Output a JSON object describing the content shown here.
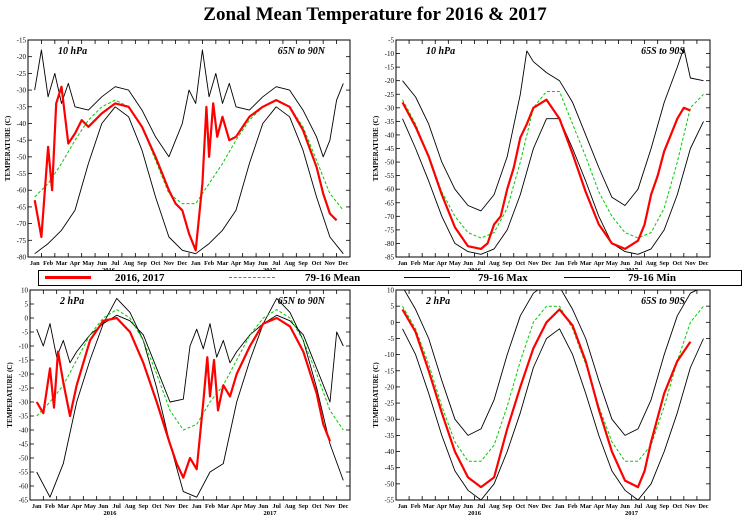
{
  "title": "Zonal Mean Temperature for 2016 & 2017",
  "legend": {
    "items": [
      {
        "label": "2016, 2017",
        "color": "#ff0000",
        "style": "solid-thick"
      },
      {
        "label": "79-16 Mean",
        "color": "#00cc00",
        "style": "dashed"
      },
      {
        "label": "79-16 Max",
        "color": "#000000",
        "style": "solid"
      },
      {
        "label": "79-16 Min",
        "color": "#000000",
        "style": "solid"
      }
    ]
  },
  "chart_data": [
    {
      "type": "line",
      "level": "10 hPa",
      "region": "65N to 90N",
      "ylabel": "TEMPERATURE (C)",
      "ylim": [
        -80,
        -15
      ],
      "yticks": [
        -80,
        -75,
        -70,
        -65,
        -60,
        -55,
        -50,
        -45,
        -40,
        -35,
        -30,
        -25,
        -20,
        -15
      ],
      "xticks": [
        "Jan",
        "Feb",
        "Mar",
        "Apr",
        "May",
        "Jun",
        "Jul",
        "Aug",
        "Sep",
        "Oct",
        "Nov",
        "Dec",
        "Jan",
        "Feb",
        "Mar",
        "Apr",
        "May",
        "Jun",
        "Jul",
        "Aug",
        "Sep",
        "Oct",
        "Nov",
        "Dec"
      ],
      "year_labels": [
        "2016",
        "2017"
      ],
      "series": [
        {
          "name": "2016, 2017",
          "x": [
            0,
            0.5,
            1,
            1.3,
            1.6,
            2,
            2.5,
            3,
            3.5,
            4,
            5,
            6,
            7,
            8,
            9,
            10,
            10.5,
            11,
            11.5,
            12,
            12.5,
            12.8,
            13,
            13.3,
            13.6,
            14,
            14.5,
            15,
            16,
            17,
            18,
            19,
            20,
            21,
            21.5,
            22,
            22.5
          ],
          "y": [
            -63,
            -74,
            -47,
            -60,
            -34,
            -29,
            -46,
            -43,
            -39,
            -41,
            -37,
            -34,
            -35,
            -41,
            -50,
            -60,
            -64,
            -66,
            -73,
            -78,
            -58,
            -35,
            -50,
            -34,
            -44,
            -38,
            -45,
            -44,
            -38,
            -35,
            -33,
            -35,
            -42,
            -53,
            -61,
            -67,
            -69
          ]
        },
        {
          "name": "79-16 Mean",
          "x": [
            0,
            1,
            2,
            3,
            4,
            5,
            6,
            7,
            8,
            9,
            10,
            11,
            12,
            13,
            14,
            15,
            16,
            17,
            18,
            19,
            20,
            21,
            22,
            23
          ],
          "y": [
            -62,
            -58,
            -52,
            -45,
            -39,
            -35,
            -33,
            -35,
            -41,
            -51,
            -61,
            -64,
            -64,
            -58,
            -52,
            -45,
            -39,
            -35,
            -33,
            -35,
            -41,
            -51,
            -61,
            -66
          ]
        },
        {
          "name": "79-16 Max",
          "x": [
            0,
            0.5,
            1,
            1.5,
            2,
            2.5,
            3,
            4,
            5,
            6,
            7,
            8,
            9,
            10,
            10.5,
            11,
            11.5,
            12,
            12.5,
            13,
            13.5,
            14,
            14.5,
            15,
            16,
            17,
            18,
            19,
            20,
            21,
            21.5,
            22,
            22.5,
            23
          ],
          "y": [
            -30,
            -18,
            -32,
            -25,
            -34,
            -28,
            -35,
            -36,
            -32,
            -29,
            -30,
            -36,
            -44,
            -50,
            -45,
            -40,
            -30,
            -34,
            -18,
            -32,
            -25,
            -34,
            -28,
            -35,
            -36,
            -32,
            -29,
            -30,
            -36,
            -44,
            -50,
            -45,
            -33,
            -28
          ]
        },
        {
          "name": "79-16 Min",
          "x": [
            0,
            1,
            2,
            3,
            4,
            5,
            6,
            7,
            8,
            9,
            10,
            11,
            12,
            13,
            14,
            15,
            16,
            17,
            18,
            19,
            20,
            21,
            22,
            23
          ],
          "y": [
            -79,
            -76,
            -72,
            -66,
            -52,
            -40,
            -35,
            -38,
            -48,
            -62,
            -74,
            -78,
            -79,
            -76,
            -72,
            -66,
            -52,
            -40,
            -35,
            -38,
            -48,
            -62,
            -74,
            -79
          ]
        }
      ]
    },
    {
      "type": "line",
      "level": "10 hPa",
      "region": "65S to 90S",
      "ylabel": "TEMPERATURE (C)",
      "ylim": [
        -85,
        -5
      ],
      "yticks": [
        -85,
        -80,
        -75,
        -70,
        -65,
        -60,
        -55,
        -50,
        -45,
        -40,
        -35,
        -30,
        -25,
        -20,
        -15,
        -10,
        -5
      ],
      "xticks": [
        "Jan",
        "Feb",
        "Mar",
        "Apr",
        "May",
        "Jun",
        "Jul",
        "Aug",
        "Sep",
        "Oct",
        "Nov",
        "Dec",
        "Jan",
        "Feb",
        "Mar",
        "Apr",
        "May",
        "Jun",
        "Jul",
        "Aug",
        "Sep",
        "Oct",
        "Nov",
        "Dec"
      ],
      "year_labels": [
        "2016",
        "2017"
      ],
      "series": [
        {
          "name": "2016, 2017",
          "x": [
            0,
            1,
            2,
            3,
            4,
            5,
            6,
            6.5,
            7,
            7.5,
            8,
            8.5,
            9,
            9.5,
            10,
            11,
            12,
            13,
            14,
            15,
            16,
            17,
            18,
            18.5,
            19,
            19.5,
            20,
            20.5,
            21,
            21.5,
            22
          ],
          "y": [
            -28,
            -37,
            -48,
            -62,
            -74,
            -81,
            -82,
            -80,
            -73,
            -70,
            -60,
            -52,
            -41,
            -36,
            -30,
            -27,
            -34,
            -47,
            -61,
            -73,
            -80,
            -82,
            -79,
            -73,
            -62,
            -55,
            -46,
            -40,
            -34,
            -30,
            -31
          ]
        },
        {
          "name": "79-16 Mean",
          "x": [
            0,
            1,
            2,
            3,
            4,
            5,
            6,
            7,
            8,
            9,
            10,
            11,
            12,
            13,
            14,
            15,
            16,
            17,
            18,
            19,
            20,
            21,
            22,
            23
          ],
          "y": [
            -27,
            -36,
            -48,
            -61,
            -70,
            -76,
            -78,
            -76,
            -67,
            -50,
            -30,
            -24,
            -24,
            -36,
            -48,
            -61,
            -70,
            -76,
            -78,
            -76,
            -67,
            -50,
            -30,
            -25
          ]
        },
        {
          "name": "79-16 Max",
          "x": [
            0,
            1,
            2,
            3,
            4,
            5,
            6,
            7,
            8,
            9,
            9.5,
            10,
            11,
            12,
            13,
            14,
            15,
            16,
            17,
            18,
            19,
            20,
            21,
            21.5,
            22,
            23
          ],
          "y": [
            -20,
            -26,
            -36,
            -50,
            -60,
            -66,
            -68,
            -62,
            -48,
            -25,
            -9,
            -13,
            -17,
            -20,
            -28,
            -40,
            -52,
            -63,
            -66,
            -60,
            -45,
            -28,
            -15,
            -8,
            -19,
            -20
          ]
        },
        {
          "name": "79-16 Min",
          "x": [
            0,
            1,
            2,
            3,
            4,
            5,
            6,
            7,
            8,
            9,
            10,
            11,
            12,
            13,
            14,
            15,
            16,
            17,
            18,
            19,
            20,
            21,
            22,
            23
          ],
          "y": [
            -34,
            -45,
            -57,
            -70,
            -80,
            -83,
            -84,
            -82,
            -75,
            -62,
            -45,
            -34,
            -34,
            -45,
            -57,
            -70,
            -80,
            -83,
            -84,
            -82,
            -75,
            -62,
            -45,
            -35
          ]
        }
      ]
    },
    {
      "type": "line",
      "level": "2 hPa",
      "region": "65N to 90N",
      "ylabel": "TEMPERATURE (C)",
      "ylim": [
        -65,
        10
      ],
      "yticks": [
        -65,
        -60,
        -55,
        -50,
        -45,
        -40,
        -35,
        -30,
        -25,
        -20,
        -15,
        -10,
        -5,
        0,
        5,
        10
      ],
      "xticks": [
        "Jan",
        "Feb",
        "Mar",
        "Apr",
        "May",
        "Jun",
        "Jul",
        "Aug",
        "Sep",
        "Oct",
        "Nov",
        "Dec",
        "Jan",
        "Feb",
        "Mar",
        "Apr",
        "May",
        "Jun",
        "Jul",
        "Aug",
        "Sep",
        "Oct",
        "Nov",
        "Dec"
      ],
      "year_labels": [
        "2016",
        "2017"
      ],
      "series": [
        {
          "name": "2016, 2017",
          "x": [
            0,
            0.5,
            1,
            1.3,
            1.6,
            2,
            2.5,
            3,
            4,
            5,
            6,
            7,
            8,
            9,
            10,
            10.5,
            11,
            11.5,
            12,
            12.5,
            12.8,
            13,
            13.3,
            13.6,
            14,
            14.5,
            15,
            16,
            17,
            18,
            19,
            20,
            21,
            21.5,
            22
          ],
          "y": [
            -30,
            -34,
            -18,
            -32,
            -12,
            -23,
            -35,
            -24,
            -8,
            -1,
            0,
            -5,
            -16,
            -30,
            -45,
            -52,
            -57,
            -50,
            -54,
            -30,
            -14,
            -28,
            -15,
            -33,
            -24,
            -28,
            -20,
            -10,
            -2,
            0,
            -3,
            -12,
            -27,
            -38,
            -44
          ]
        },
        {
          "name": "79-16 Mean",
          "x": [
            0,
            1,
            2,
            3,
            4,
            5,
            6,
            7,
            8,
            9,
            10,
            11,
            12,
            13,
            14,
            15,
            16,
            17,
            18,
            19,
            20,
            21,
            22,
            23
          ],
          "y": [
            -35,
            -30,
            -24,
            -15,
            -6,
            0,
            3,
            0,
            -8,
            -20,
            -33,
            -40,
            -38,
            -30,
            -24,
            -15,
            -6,
            0,
            3,
            0,
            -8,
            -20,
            -33,
            -40
          ]
        },
        {
          "name": "79-16 Max",
          "x": [
            0,
            0.5,
            1,
            1.5,
            2,
            2.5,
            3,
            4,
            5,
            6,
            7,
            8,
            9,
            10,
            11,
            11.5,
            12,
            12.5,
            13,
            13.5,
            14,
            14.5,
            15,
            16,
            17,
            18,
            19,
            20,
            21,
            22,
            22.5,
            23
          ],
          "y": [
            -4,
            -10,
            -2,
            -14,
            -8,
            -16,
            -12,
            -6,
            -2,
            1,
            -1,
            -6,
            -18,
            -30,
            -29,
            -10,
            -4,
            -11,
            -2,
            -14,
            -8,
            -16,
            -12,
            -6,
            -2,
            1,
            -1,
            -6,
            -18,
            -30,
            -5,
            -10
          ]
        },
        {
          "name": "79-16 Min",
          "x": [
            0,
            1,
            2,
            3,
            4,
            5,
            6,
            7,
            8,
            9,
            10,
            11,
            12,
            13,
            14,
            15,
            16,
            17,
            18,
            19,
            20,
            21,
            22,
            23
          ],
          "y": [
            -55,
            -64,
            -52,
            -30,
            -15,
            -2,
            7,
            2,
            -8,
            -25,
            -45,
            -62,
            -64,
            -55,
            -52,
            -30,
            -15,
            -2,
            7,
            2,
            -8,
            -25,
            -45,
            -58
          ]
        }
      ]
    },
    {
      "type": "line",
      "level": "2 hPa",
      "region": "65S to 90S",
      "ylabel": "TEMPERATURE (C)",
      "ylim": [
        -55,
        10
      ],
      "yticks": [
        -55,
        -50,
        -45,
        -40,
        -35,
        -30,
        -25,
        -20,
        -15,
        -10,
        -5,
        0,
        5,
        10
      ],
      "xticks": [
        "Jan",
        "Feb",
        "Mar",
        "Apr",
        "May",
        "Jun",
        "Jul",
        "Aug",
        "Sep",
        "Oct",
        "Nov",
        "Dec",
        "Jan",
        "Feb",
        "Mar",
        "Apr",
        "May",
        "Jun",
        "Jul",
        "Aug",
        "Sep",
        "Oct",
        "Nov",
        "Dec"
      ],
      "year_labels": [
        "2016",
        "2017"
      ],
      "series": [
        {
          "name": "2016, 2017",
          "x": [
            0,
            1,
            2,
            3,
            4,
            5,
            6,
            7,
            8,
            9,
            10,
            11,
            12,
            13,
            14,
            15,
            16,
            17,
            18,
            18.5,
            19,
            20,
            21,
            22
          ],
          "y": [
            4,
            -3,
            -15,
            -28,
            -40,
            -48,
            -51,
            -48,
            -33,
            -20,
            -8,
            0,
            4,
            -1,
            -12,
            -27,
            -40,
            -49,
            -51,
            -46,
            -37,
            -22,
            -12,
            -6
          ]
        },
        {
          "name": "79-16 Mean",
          "x": [
            0,
            1,
            2,
            3,
            4,
            5,
            6,
            7,
            8,
            9,
            10,
            11,
            12,
            13,
            14,
            15,
            16,
            17,
            18,
            19,
            20,
            21,
            22,
            23
          ],
          "y": [
            5,
            -2,
            -13,
            -26,
            -37,
            -43,
            -43,
            -38,
            -26,
            -12,
            0,
            5,
            5,
            -2,
            -13,
            -26,
            -37,
            -43,
            -43,
            -38,
            -26,
            -12,
            0,
            5
          ]
        },
        {
          "name": "79-16 Max",
          "x": [
            0,
            1,
            2,
            3,
            4,
            5,
            6,
            7,
            8,
            9,
            10,
            11,
            12,
            13,
            14,
            15,
            16,
            17,
            18,
            19,
            20,
            21,
            22,
            23
          ],
          "y": [
            11,
            4,
            -5,
            -18,
            -30,
            -35,
            -33,
            -24,
            -10,
            2,
            9,
            12,
            11,
            4,
            -5,
            -18,
            -30,
            -35,
            -33,
            -24,
            -10,
            2,
            9,
            11
          ]
        },
        {
          "name": "79-16 Min",
          "x": [
            0,
            1,
            2,
            3,
            4,
            5,
            6,
            7,
            8,
            9,
            10,
            11,
            12,
            13,
            14,
            15,
            16,
            17,
            18,
            19,
            20,
            21,
            22,
            23
          ],
          "y": [
            -2,
            -10,
            -22,
            -35,
            -46,
            -52,
            -55,
            -50,
            -40,
            -28,
            -14,
            -5,
            -2,
            -10,
            -22,
            -35,
            -46,
            -52,
            -55,
            -50,
            -40,
            -28,
            -14,
            -5
          ]
        }
      ]
    }
  ]
}
